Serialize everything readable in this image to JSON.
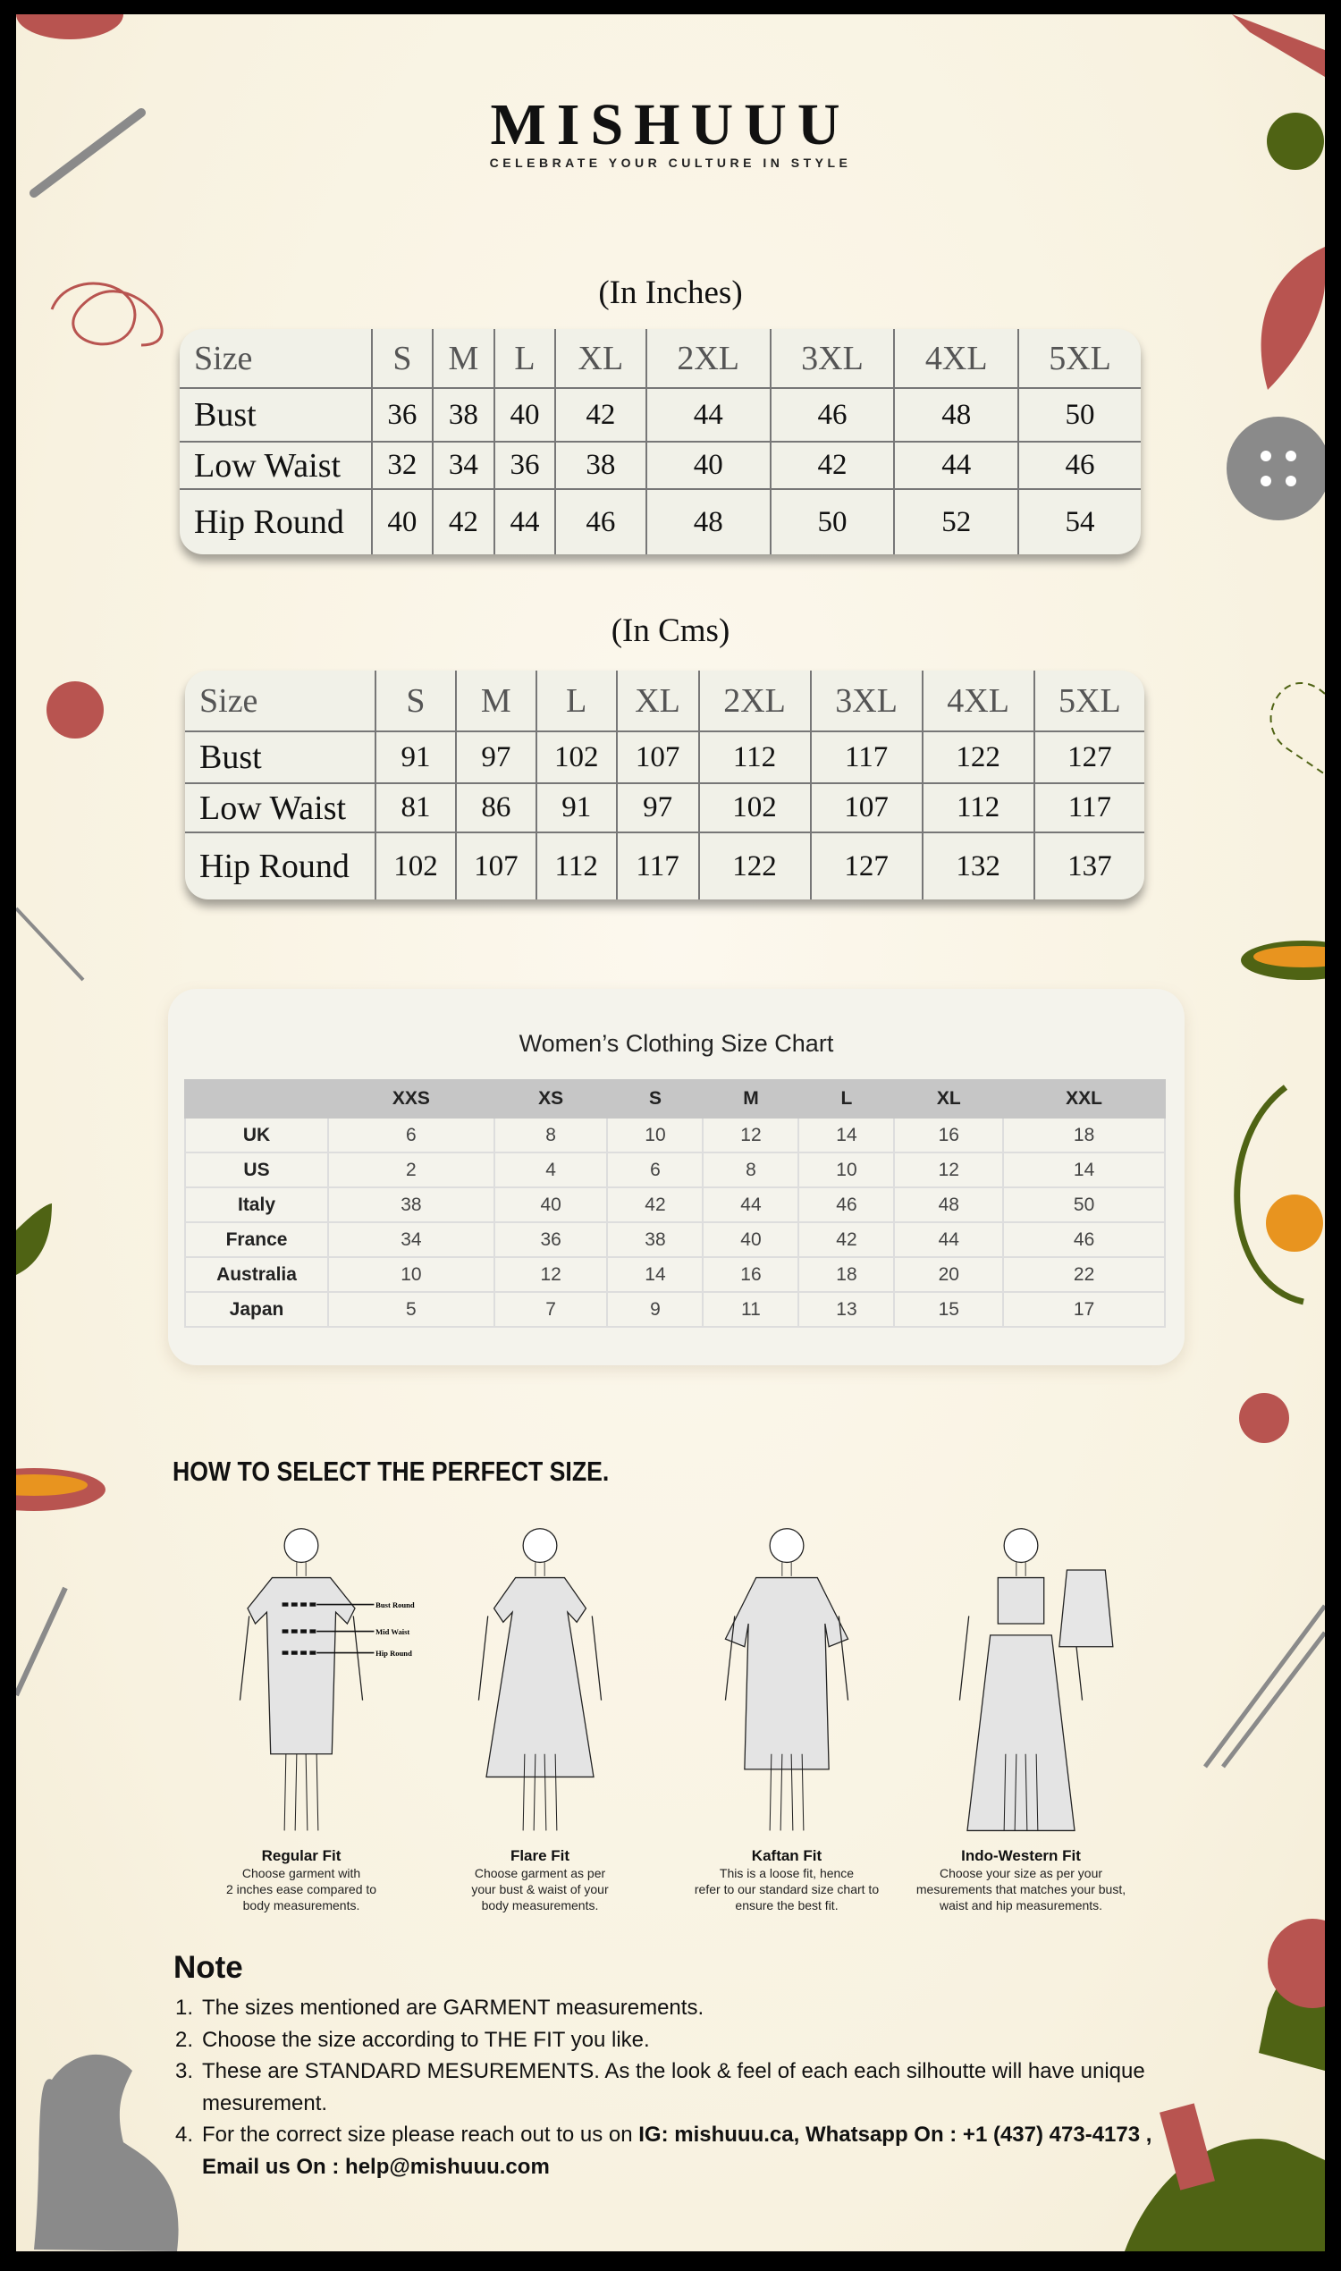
{
  "brand": {
    "logo": "MISHUUU",
    "tagline": "CELEBRATE YOUR CULTURE IN STYLE"
  },
  "inches_table": {
    "caption": "(In Inches)",
    "header": [
      "Size",
      "S",
      "M",
      "L",
      "XL",
      "2XL",
      "3XL",
      "4XL",
      "5XL"
    ],
    "rows": [
      [
        "Bust",
        "36",
        "38",
        "40",
        "42",
        "44",
        "46",
        "48",
        "50"
      ],
      [
        "Low Waist",
        "32",
        "34",
        "36",
        "38",
        "40",
        "42",
        "44",
        "46"
      ],
      [
        "Hip Round",
        "40",
        "42",
        "44",
        "46",
        "48",
        "50",
        "52",
        "54"
      ]
    ]
  },
  "cms_table": {
    "caption": "(In Cms)",
    "header": [
      "Size",
      "S",
      "M",
      "L",
      "XL",
      "2XL",
      "3XL",
      "4XL",
      "5XL"
    ],
    "rows": [
      [
        "Bust",
        "91",
        "97",
        "102",
        "107",
        "112",
        "117",
        "122",
        "127"
      ],
      [
        "Low Waist",
        "81",
        "86",
        "91",
        "97",
        "102",
        "107",
        "112",
        "117"
      ],
      [
        "Hip Round",
        "102",
        "107",
        "112",
        "117",
        "122",
        "127",
        "132",
        "137"
      ]
    ]
  },
  "womens_chart": {
    "title": "Women’s Clothing Size Chart",
    "header": [
      "",
      "XXS",
      "XS",
      "S",
      "M",
      "L",
      "XL",
      "XXL"
    ],
    "rows": [
      [
        "UK",
        "6",
        "8",
        "10",
        "12",
        "14",
        "16",
        "18"
      ],
      [
        "US",
        "2",
        "4",
        "6",
        "8",
        "10",
        "12",
        "14"
      ],
      [
        "Italy",
        "38",
        "40",
        "42",
        "44",
        "46",
        "48",
        "50"
      ],
      [
        "France",
        "34",
        "36",
        "38",
        "40",
        "42",
        "44",
        "46"
      ],
      [
        "Australia",
        "10",
        "12",
        "14",
        "16",
        "18",
        "20",
        "22"
      ],
      [
        "Japan",
        "5",
        "7",
        "9",
        "11",
        "13",
        "15",
        "17"
      ]
    ]
  },
  "howto": {
    "title": "HOW TO SELECT THE PERFECT SIZE.",
    "measure_labels": [
      "Bust Round",
      "Mid Waist",
      "Hip Round"
    ],
    "fits": [
      {
        "title": "Regular Fit",
        "desc": "Choose garment with\n2 inches ease compared to\nbody measurements."
      },
      {
        "title": "Flare Fit",
        "desc": "Choose garment as per\nyour bust & waist of your\nbody measurements."
      },
      {
        "title": "Kaftan Fit",
        "desc": "This is a loose fit, hence\nrefer to our standard size chart to\nensure the best fit."
      },
      {
        "title": "Indo-Western Fit",
        "desc": "Choose your size as per your\nmesurements that matches your bust,\nwaist and hip measurements."
      }
    ]
  },
  "note": {
    "title": "Note",
    "items": [
      {
        "num": "1.",
        "text": "The sizes mentioned are GARMENT measurements."
      },
      {
        "num": "2.",
        "text": "Choose the size according to THE FIT you like."
      },
      {
        "num": "3.",
        "text": "These are STANDARD MESUREMENTS. As the look & feel of each each silhoutte will have unique mesurement."
      },
      {
        "num": "4.",
        "text": "For the correct size please reach out to us on ",
        "bold": "IG: mishuuu.ca, Whatsapp On : +1 (437) 473-4173 , Email us On : help@mishuuu.com"
      }
    ]
  },
  "colors": {
    "background": "#f8f2e0",
    "frame": "#000000",
    "accent_red": "#b85450",
    "accent_green": "#4f6314",
    "accent_orange": "#e8941f",
    "accent_gray": "#8a8a8a"
  }
}
